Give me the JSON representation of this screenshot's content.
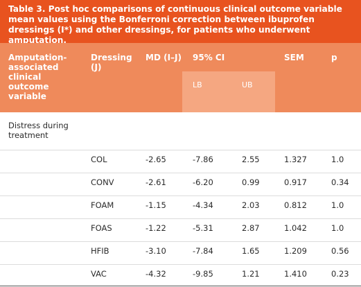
{
  "title": "Table 3. Post hoc comparisons of continuous clinical outcome variable mean values using the Bonferroni correction between ibuprofen dressings (I*) and other dressings, for patients who underwent amputation.",
  "header": {
    "columns": [
      "Amputation-associated clinical outcome variable",
      "Dressing (J)",
      "MD (I–J)",
      "95% CI",
      "SEM",
      "p"
    ],
    "ci": [
      "LB",
      "UB"
    ]
  },
  "groups": [
    {
      "label": "Distress during treatment",
      "rows": [
        [
          "COL",
          "-2.65",
          "-7.86",
          "2.55",
          "1.327",
          "1.0"
        ],
        [
          "CONV",
          "-2.61",
          "-6.20",
          "0.99",
          "0.917",
          "0.34"
        ],
        [
          "FOAM",
          "-1.15",
          "-4.34",
          "2.03",
          "0.812",
          "1.0"
        ],
        [
          "FOAS",
          "-1.22",
          "-5.31",
          "2.87",
          "1.042",
          "1.0"
        ],
        [
          "HFIB",
          "-3.10",
          "-7.84",
          "1.65",
          "1.209",
          "0.56"
        ],
        [
          "VAC",
          "-4.32",
          "-9.85",
          "1.21",
          "1.410",
          "0.23"
        ]
      ]
    }
  ]
}
